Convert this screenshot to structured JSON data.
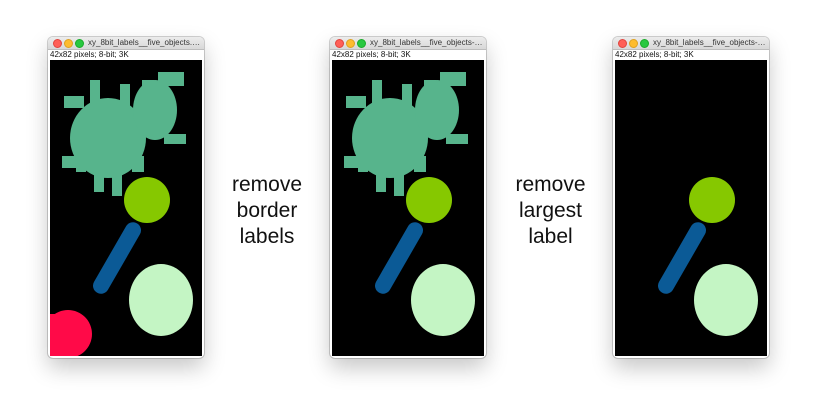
{
  "colors": {
    "background": "#ffffff",
    "canvas": "#000000",
    "label_sea_green": "#57b48c",
    "label_lime": "#86c800",
    "label_blue": "#0b5a96",
    "label_pale_green": "#c4f5c4",
    "label_red": "#ff0a48"
  },
  "windows": [
    {
      "title": "xy_8bit_labels__five_objects.ti...",
      "info": "42x82 pixels; 8-bit; 3K",
      "objects": [
        "sea-green-blob",
        "lime-circle",
        "blue-ellipse",
        "pale-green-ellipse",
        "red-border-object"
      ]
    },
    {
      "title": "xy_8bit_labels__five_objects-k...",
      "info": "42x82 pixels; 8-bit; 3K",
      "objects": [
        "sea-green-blob",
        "lime-circle",
        "blue-ellipse",
        "pale-green-ellipse"
      ]
    },
    {
      "title": "xy_8bit_labels__five_objects-k...",
      "info": "42x82 pixels; 8-bit; 3K",
      "objects": [
        "lime-circle",
        "blue-ellipse",
        "pale-green-ellipse"
      ]
    }
  ],
  "captions": [
    {
      "lines": [
        "remove",
        "border",
        "labels"
      ]
    },
    {
      "lines": [
        "remove",
        "largest",
        "label"
      ]
    }
  ]
}
